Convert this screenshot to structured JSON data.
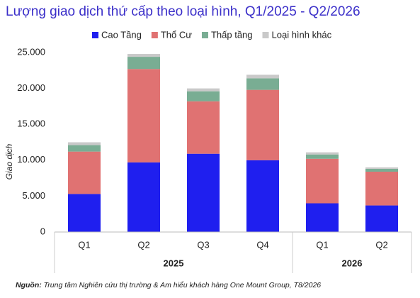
{
  "chart_data": {
    "type": "stacked_bar",
    "title": "Lượng giao dịch thứ cấp theo loại hình, Q1/2025 - Q2/2026",
    "y_label": "Giao dịch",
    "categories": [
      "Q1",
      "Q2",
      "Q3",
      "Q4",
      "Q1",
      "Q2"
    ],
    "category_groups": [
      "2025",
      "2025",
      "2025",
      "2025",
      "2026",
      "2026"
    ],
    "series": [
      {
        "name": "Cao Tầng",
        "color": "#1f1fef",
        "values": [
          5300,
          9700,
          10900,
          10000,
          4000,
          3700
        ]
      },
      {
        "name": "Thổ Cư",
        "color": "#e07272",
        "values": [
          5900,
          13000,
          7300,
          9800,
          6200,
          4700
        ]
      },
      {
        "name": "Thấp tầng",
        "color": "#79ad93",
        "values": [
          900,
          1700,
          1400,
          1600,
          600,
          400
        ]
      },
      {
        "name": "Loại hình khác",
        "color": "#c9c9c9",
        "values": [
          400,
          400,
          400,
          500,
          300,
          200
        ]
      }
    ],
    "ylim": [
      0,
      25000
    ],
    "yticks": [
      0,
      {
        "value": 5000,
        "label": "5.000"
      },
      {
        "value": 10000,
        "label": "10.000"
      },
      {
        "value": 15000,
        "label": "15.000"
      },
      {
        "value": 20000,
        "label": "20.000"
      },
      {
        "value": 25000,
        "label": "25.000"
      }
    ],
    "source_label": "Nguồn:",
    "source_text": "Trung tâm Nghiên cứu thị trường & Am hiểu khách hàng One Mount Group, T8/2026"
  }
}
